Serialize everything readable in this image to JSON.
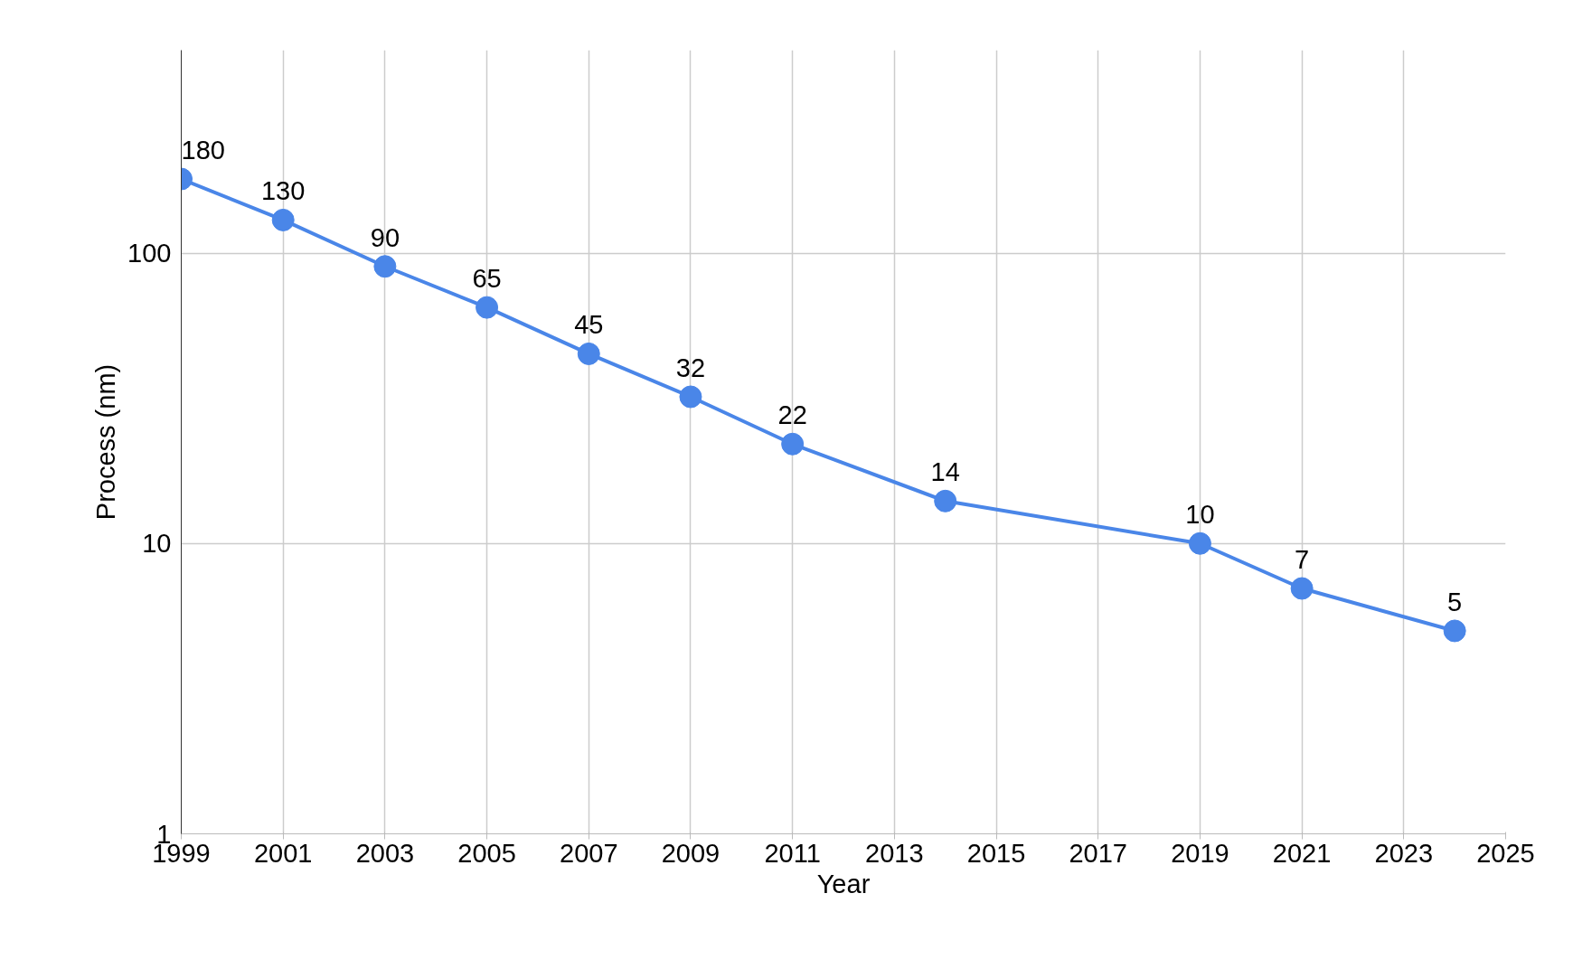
{
  "chart_data": {
    "type": "line",
    "xlabel": "Year",
    "ylabel": "Process (nm)",
    "x": [
      1999,
      2001,
      2003,
      2005,
      2007,
      2009,
      2011,
      2014,
      2019,
      2021,
      2024
    ],
    "series": [
      {
        "color": "#4a86e8",
        "values": [
          180,
          130,
          90,
          65,
          45,
          32,
          22,
          14,
          10,
          7,
          5
        ]
      }
    ],
    "xlim": [
      1999,
      2025
    ],
    "xticks": [
      1999,
      2001,
      2003,
      2005,
      2007,
      2009,
      2011,
      2013,
      2015,
      2017,
      2019,
      2021,
      2023,
      2025
    ],
    "ylim": [
      1,
      500
    ],
    "yticks": [
      1,
      10,
      100
    ],
    "log": true,
    "grid": true,
    "marker": "circle",
    "line_style": "solid",
    "data_labels": true
  }
}
